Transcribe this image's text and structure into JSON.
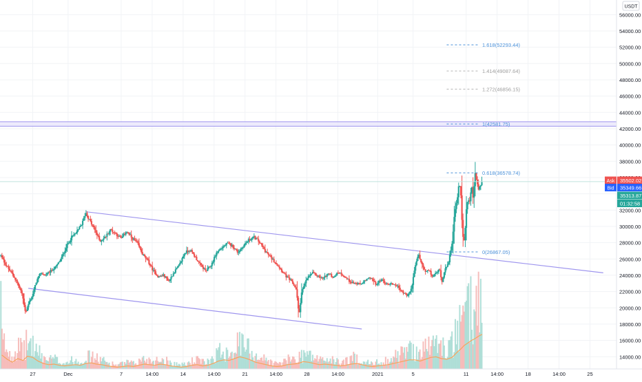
{
  "chart_data": {
    "type": "candlestick",
    "currency": "USDT",
    "ylim": [
      12500,
      57800
    ],
    "y_ticks": [
      14000,
      16000,
      18000,
      20000,
      22000,
      24000,
      26000,
      28000,
      30000,
      32000,
      34000,
      36000,
      38000,
      40000,
      42000,
      44000,
      46000,
      48000,
      50000,
      52000,
      54000,
      56000
    ],
    "y_tick_labels": [
      "14000.00",
      "16000.00",
      "18000.00",
      "20000.00",
      "22000.00",
      "24000.00",
      "26000.00",
      "28000.00",
      "30000.00",
      "32000.00",
      "34000.00",
      "36000.00",
      "38000.00",
      "40000.00",
      "42000.00",
      "44000.00",
      "46000.00",
      "48000.00",
      "50000.00",
      "52000.00",
      "54000.00",
      "56000.00"
    ],
    "x_ticks": [
      {
        "label": "27",
        "t": 0
      },
      {
        "label": "Dec",
        "t": 4
      },
      {
        "label": "7",
        "t": 10
      },
      {
        "label": "14:00",
        "t": 13.5
      },
      {
        "label": "14",
        "t": 17
      },
      {
        "label": "14:00",
        "t": 20.5
      },
      {
        "label": "21",
        "t": 24
      },
      {
        "label": "14:00",
        "t": 27.5
      },
      {
        "label": "28",
        "t": 31
      },
      {
        "label": "14:00",
        "t": 34.5
      },
      {
        "label": "2021",
        "t": 39
      },
      {
        "label": "5",
        "t": 43
      },
      {
        "label": "11",
        "t": 49
      },
      {
        "label": "14:00",
        "t": 52.5
      },
      {
        "label": "18",
        "t": 56
      },
      {
        "label": "14:00",
        "t": 59.5
      },
      {
        "label": "25",
        "t": 63
      }
    ],
    "x_range": [
      -3.7,
      66
    ],
    "price_series": [
      [
        -3.6,
        26400
      ],
      [
        -3.0,
        25200
      ],
      [
        -2.4,
        24300
      ],
      [
        -1.8,
        23200
      ],
      [
        -1.2,
        21700
      ],
      [
        -0.8,
        19400
      ],
      [
        -0.4,
        20700
      ],
      [
        0,
        21600
      ],
      [
        0.4,
        23200
      ],
      [
        0.9,
        24300
      ],
      [
        1.4,
        24000
      ],
      [
        2,
        24500
      ],
      [
        2.6,
        25000
      ],
      [
        3.2,
        26000
      ],
      [
        3.8,
        27500
      ],
      [
        4.4,
        28700
      ],
      [
        5,
        29300
      ],
      [
        5.6,
        30400
      ],
      [
        6,
        31700
      ],
      [
        6.4,
        30800
      ],
      [
        7,
        29600
      ],
      [
        7.6,
        28200
      ],
      [
        8.2,
        28700
      ],
      [
        8.8,
        29600
      ],
      [
        9.4,
        29100
      ],
      [
        10,
        28500
      ],
      [
        10.6,
        29400
      ],
      [
        11.2,
        28600
      ],
      [
        11.8,
        28000
      ],
      [
        12.4,
        26600
      ],
      [
        13,
        25800
      ],
      [
        13.6,
        24600
      ],
      [
        14.2,
        23800
      ],
      [
        14.8,
        24000
      ],
      [
        15.4,
        23300
      ],
      [
        16,
        24400
      ],
      [
        16.6,
        25300
      ],
      [
        17.2,
        26800
      ],
      [
        17.8,
        27100
      ],
      [
        18.4,
        26200
      ],
      [
        19,
        25200
      ],
      [
        19.6,
        24500
      ],
      [
        20.2,
        25300
      ],
      [
        20.8,
        26800
      ],
      [
        21.4,
        27400
      ],
      [
        22,
        27900
      ],
      [
        22.6,
        27600
      ],
      [
        23.2,
        26800
      ],
      [
        23.8,
        27600
      ],
      [
        24.4,
        28300
      ],
      [
        25,
        28700
      ],
      [
        25.6,
        28100
      ],
      [
        26.2,
        27100
      ],
      [
        26.8,
        26300
      ],
      [
        27.4,
        25600
      ],
      [
        28,
        24800
      ],
      [
        28.6,
        23900
      ],
      [
        29.2,
        23300
      ],
      [
        29.8,
        22300
      ],
      [
        30.1,
        19000
      ],
      [
        30.4,
        21900
      ],
      [
        31,
        23600
      ],
      [
        31.6,
        24300
      ],
      [
        32.2,
        23900
      ],
      [
        32.8,
        23600
      ],
      [
        33.4,
        24200
      ],
      [
        34,
        23800
      ],
      [
        34.6,
        24400
      ],
      [
        35.2,
        23900
      ],
      [
        35.8,
        23300
      ],
      [
        36.4,
        23000
      ],
      [
        37,
        22900
      ],
      [
        37.6,
        23300
      ],
      [
        38.2,
        23800
      ],
      [
        38.8,
        22800
      ],
      [
        39.4,
        23500
      ],
      [
        40,
        22900
      ],
      [
        40.6,
        23000
      ],
      [
        41.2,
        22700
      ],
      [
        41.8,
        21900
      ],
      [
        42.4,
        21500
      ],
      [
        42.8,
        22300
      ],
      [
        43.2,
        24800
      ],
      [
        43.6,
        26600
      ],
      [
        44,
        25300
      ],
      [
        44.4,
        24400
      ],
      [
        44.8,
        24600
      ],
      [
        45.2,
        23800
      ],
      [
        45.6,
        24300
      ],
      [
        46,
        24700
      ],
      [
        46.3,
        23100
      ],
      [
        46.6,
        24900
      ],
      [
        47,
        25400
      ],
      [
        47.4,
        28000
      ],
      [
        47.7,
        31600
      ],
      [
        48,
        33400
      ],
      [
        48.2,
        35600
      ],
      [
        48.4,
        33800
      ],
      [
        48.6,
        29200
      ],
      [
        48.8,
        28000
      ],
      [
        49,
        31700
      ],
      [
        49.2,
        33500
      ],
      [
        49.4,
        33000
      ],
      [
        49.6,
        35200
      ],
      [
        49.8,
        33400
      ],
      [
        50,
        36800
      ],
      [
        50.2,
        35200
      ],
      [
        50.4,
        34600
      ],
      [
        50.6,
        34800
      ],
      [
        50.8,
        35600
      ]
    ],
    "volume_series": [
      [
        -3.5,
        2300
      ],
      [
        -2.9,
        1600
      ],
      [
        -2.3,
        1100
      ],
      [
        -1.7,
        1700
      ],
      [
        -1.1,
        1400
      ],
      [
        -0.6,
        2100
      ],
      [
        0,
        1900
      ],
      [
        0.6,
        1300
      ],
      [
        1.2,
        900
      ],
      [
        1.8,
        700
      ],
      [
        2.4,
        800
      ],
      [
        3,
        600
      ],
      [
        3.6,
        500
      ],
      [
        4.2,
        600
      ],
      [
        4.8,
        700
      ],
      [
        5.4,
        600
      ],
      [
        6,
        900
      ],
      [
        6.6,
        1000
      ],
      [
        7.2,
        800
      ],
      [
        7.8,
        700
      ],
      [
        8.4,
        500
      ],
      [
        9,
        400
      ],
      [
        9.6,
        300
      ],
      [
        10.2,
        400
      ],
      [
        10.8,
        500
      ],
      [
        11.4,
        400
      ],
      [
        12,
        600
      ],
      [
        12.6,
        800
      ],
      [
        13.2,
        700
      ],
      [
        13.8,
        600
      ],
      [
        14.4,
        800
      ],
      [
        15,
        700
      ],
      [
        15.6,
        500
      ],
      [
        16.2,
        400
      ],
      [
        16.8,
        300
      ],
      [
        17.4,
        400
      ],
      [
        18,
        600
      ],
      [
        18.6,
        700
      ],
      [
        19.2,
        500
      ],
      [
        19.8,
        600
      ],
      [
        20.4,
        900
      ],
      [
        21,
        1300
      ],
      [
        21.6,
        1500
      ],
      [
        22.2,
        1400
      ],
      [
        22.8,
        1700
      ],
      [
        23.4,
        2000
      ],
      [
        24,
        1800
      ],
      [
        24.6,
        1500
      ],
      [
        25.2,
        1100
      ],
      [
        25.8,
        900
      ],
      [
        26.4,
        700
      ],
      [
        27,
        500
      ],
      [
        27.6,
        400
      ],
      [
        28.2,
        500
      ],
      [
        28.8,
        700
      ],
      [
        29.4,
        800
      ],
      [
        30,
        900
      ],
      [
        30.6,
        1200
      ],
      [
        31.2,
        1100
      ],
      [
        31.8,
        900
      ],
      [
        32.4,
        700
      ],
      [
        33,
        800
      ],
      [
        33.6,
        700
      ],
      [
        34.2,
        600
      ],
      [
        34.8,
        500
      ],
      [
        35.4,
        600
      ],
      [
        36,
        800
      ],
      [
        36.6,
        900
      ],
      [
        37.2,
        700
      ],
      [
        37.8,
        500
      ],
      [
        38.4,
        400
      ],
      [
        39,
        500
      ],
      [
        39.6,
        600
      ],
      [
        40.2,
        700
      ],
      [
        40.8,
        900
      ],
      [
        41.4,
        1100
      ],
      [
        42,
        1300
      ],
      [
        42.6,
        1500
      ],
      [
        43.2,
        1500
      ],
      [
        43.8,
        1300
      ],
      [
        44.4,
        1600
      ],
      [
        45,
        1900
      ],
      [
        45.6,
        2000
      ],
      [
        46.2,
        1700
      ],
      [
        46.8,
        1600
      ],
      [
        47.4,
        1900
      ],
      [
        48,
        2800
      ],
      [
        48.4,
        3300
      ],
      [
        48.8,
        3900
      ],
      [
        49.2,
        4300
      ],
      [
        49.6,
        4700
      ],
      [
        50,
        5000
      ],
      [
        50.4,
        5400
      ],
      [
        50.8,
        5700
      ]
    ],
    "fib_levels": [
      {
        "label": "1.618(52293.44)",
        "value": 52293.44
      },
      {
        "label": "1.414(49087.64)",
        "value": 49087.64
      },
      {
        "label": "1.272(46856.15)",
        "value": 46856.15
      },
      {
        "label": "1(42581.75)",
        "value": 42581.75
      },
      {
        "label": "0.618(36578.74)",
        "value": 36578.74
      },
      {
        "label": "0(26867.05)",
        "value": 26867.05
      }
    ],
    "fib_x_range": [
      46.8,
      50.5
    ],
    "horizontal_band": [
      42300,
      42850
    ],
    "channel_upper": [
      [
        6.0,
        31800
      ],
      [
        64.5,
        24300
      ]
    ],
    "channel_lower": [
      [
        -0.5,
        22400
      ],
      [
        37.2,
        17400
      ]
    ],
    "last_price_line": 35502.02,
    "price_labels": {
      "ask_tag": "Ask",
      "ask_value": "35502.02",
      "bid_tag": "Bid",
      "bid_value": "35349.66",
      "last_value": "35313.87",
      "countdown": "01:32:58"
    },
    "colors": {
      "up": "#26a69a",
      "down": "#ef5350",
      "volume_ma": "#f7a35c",
      "channel": "#9d94ee",
      "fib_lines": [
        "#4a90d9",
        "#b5b5b5",
        "#b5b5b5",
        "#4a90d9",
        "#4a90d9",
        "#4a90d9"
      ],
      "fib_text": [
        "#4a90d9",
        "#9e9e9e",
        "#9e9e9e",
        "#4a90d9",
        "#4a90d9",
        "#4a90d9"
      ],
      "ask": "#ef5350",
      "bid": "#2962ff",
      "last": "#26a69a",
      "countdown": "#26a69a"
    }
  }
}
